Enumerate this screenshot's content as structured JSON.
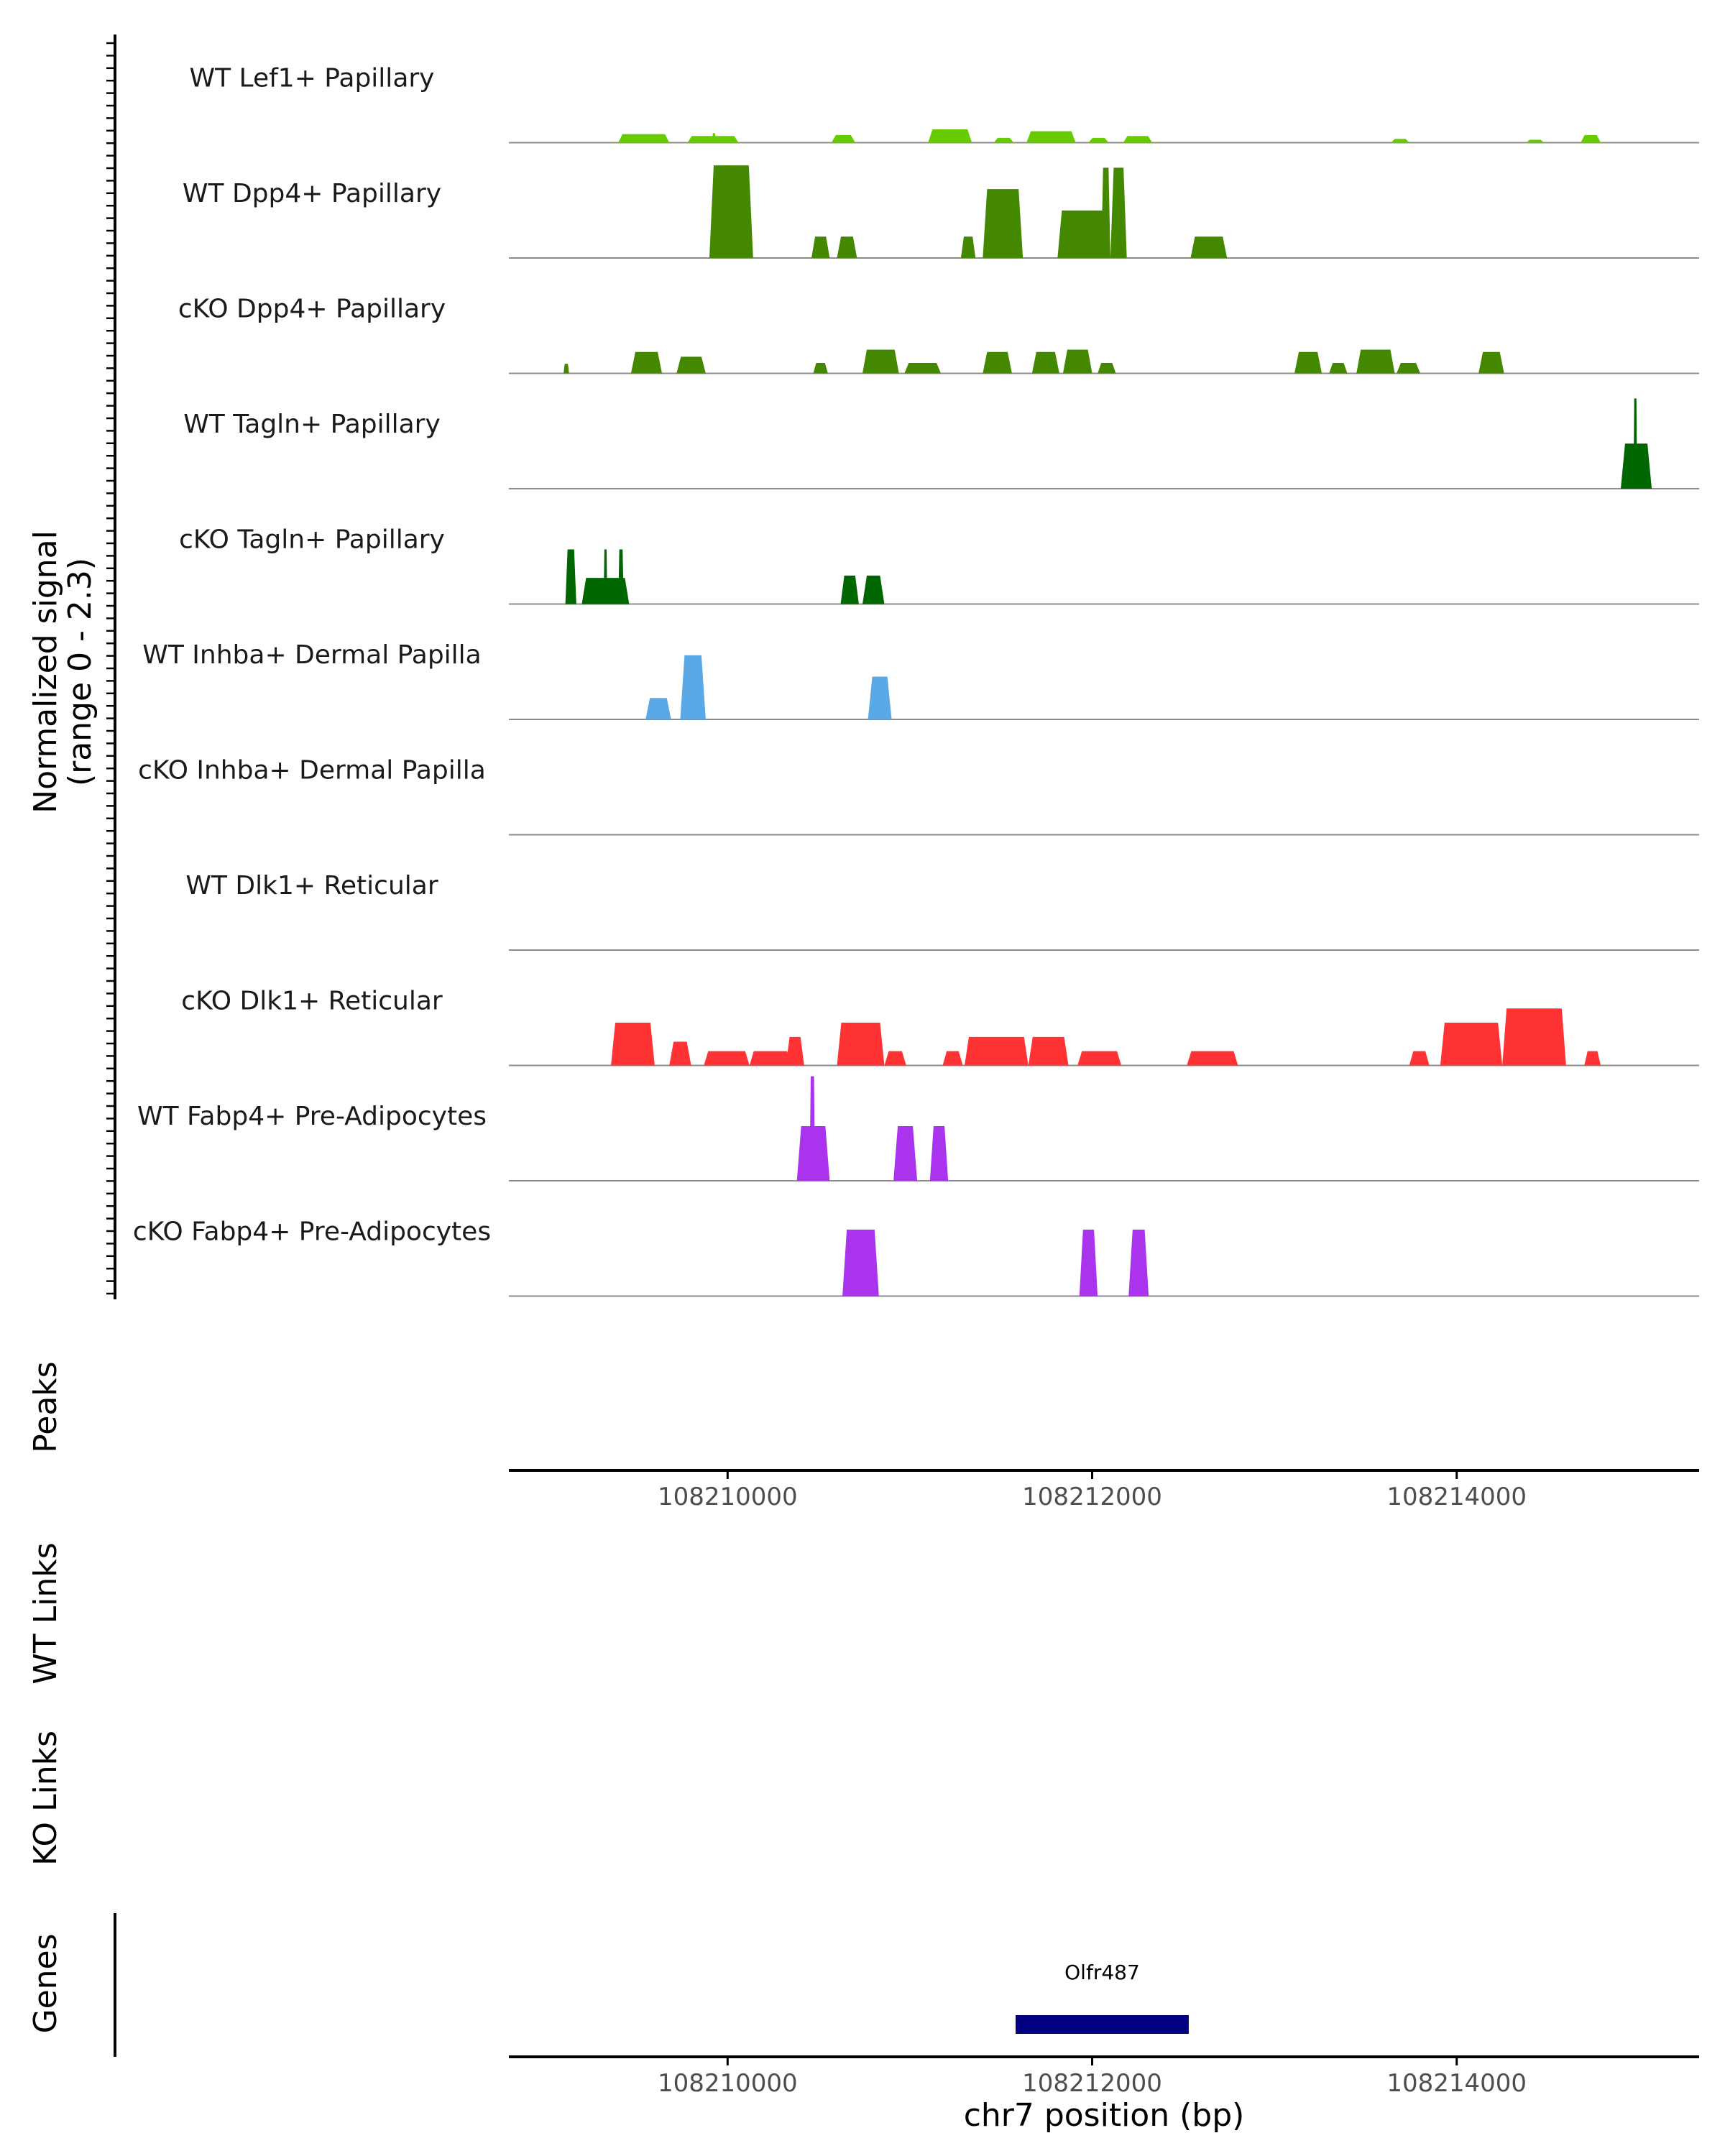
{
  "chart_data": {
    "type": "area",
    "title": "",
    "region": {
      "chromosome": "chr7",
      "start": 108208800,
      "end": 108215330
    },
    "signal_axis": {
      "label_line1": "Normalized signal",
      "label_line2": "(range 0 - 2.3)",
      "range": [
        0,
        2.3
      ]
    },
    "x_axis": {
      "xlabel": "chr7 position (bp)",
      "ticks": [
        {
          "value": 108210000,
          "label": "108210000"
        },
        {
          "value": 108212000,
          "label": "108212000"
        },
        {
          "value": 108214000,
          "label": "108214000"
        }
      ]
    },
    "panel_labels": {
      "peaks": "Peaks",
      "wt_links": "WT Links",
      "ko_links": "KO Links",
      "genes": "Genes"
    },
    "tracks": [
      {
        "name": "WT Lef1+ Papillary",
        "color": "#66cc00",
        "peaks": [
          [
            108209400,
            108209680,
            0.18
          ],
          [
            108209780,
            108210060,
            0.14
          ],
          [
            108209915,
            108209935,
            0.2
          ],
          [
            108209950,
            108209990,
            0.12
          ],
          [
            108210570,
            108210700,
            0.16
          ],
          [
            108211100,
            108211340,
            0.28
          ],
          [
            108211460,
            108211570,
            0.1
          ],
          [
            108211640,
            108211910,
            0.24
          ],
          [
            108211980,
            108212090,
            0.1
          ],
          [
            108212170,
            108212330,
            0.14
          ],
          [
            108213640,
            108213740,
            0.08
          ],
          [
            108214380,
            108214480,
            0.06
          ],
          [
            108214680,
            108214790,
            0.16
          ]
        ]
      },
      {
        "name": "WT Dpp4+ Papillary",
        "color": "#448800",
        "peaks": [
          [
            108209900,
            108210140,
            1.95
          ],
          [
            108209980,
            108210010,
            1.95
          ],
          [
            108210460,
            108210560,
            0.45
          ],
          [
            108210600,
            108210710,
            0.45
          ],
          [
            108211280,
            108211360,
            0.45
          ],
          [
            108211400,
            108211620,
            1.45
          ],
          [
            108211470,
            108211500,
            1.0
          ],
          [
            108211810,
            108212100,
            1.0
          ],
          [
            108212050,
            108212100,
            1.9
          ],
          [
            108212100,
            108212190,
            1.9
          ],
          [
            108212540,
            108212740,
            0.45
          ]
        ]
      },
      {
        "name": "cKO Dpp4+ Papillary",
        "color": "#448800",
        "peaks": [
          [
            108209100,
            108209130,
            0.2
          ],
          [
            108209470,
            108209640,
            0.45
          ],
          [
            108209720,
            108209880,
            0.35
          ],
          [
            108210470,
            108210550,
            0.22
          ],
          [
            108210740,
            108210940,
            0.5
          ],
          [
            108210970,
            108211170,
            0.22
          ],
          [
            108211400,
            108211560,
            0.45
          ],
          [
            108211670,
            108211820,
            0.45
          ],
          [
            108211840,
            108212000,
            0.5
          ],
          [
            108212030,
            108212130,
            0.22
          ],
          [
            108213110,
            108213260,
            0.45
          ],
          [
            108213300,
            108213400,
            0.22
          ],
          [
            108213450,
            108213660,
            0.5
          ],
          [
            108213670,
            108213800,
            0.22
          ],
          [
            108214120,
            108214260,
            0.45
          ]
        ]
      },
      {
        "name": "WT Tagln+ Papillary",
        "color": "#006600",
        "peaks": [
          [
            108214900,
            108215070,
            0.95
          ],
          [
            108214970,
            108214990,
            1.9
          ]
        ]
      },
      {
        "name": "cKO Tagln+ Papillary",
        "color": "#006600",
        "peaks": [
          [
            108209110,
            108209170,
            1.15
          ],
          [
            108209200,
            108209460,
            0.55
          ],
          [
            108209320,
            108209340,
            1.15
          ],
          [
            108209400,
            108209430,
            1.15
          ],
          [
            108210620,
            108210720,
            0.6
          ],
          [
            108210740,
            108210860,
            0.6
          ]
        ]
      },
      {
        "name": "WT Inhba+ Dermal Papilla",
        "color": "#5aa9e6",
        "peaks": [
          [
            108209550,
            108209690,
            0.45
          ],
          [
            108209740,
            108209880,
            1.35
          ],
          [
            108210770,
            108210900,
            0.9
          ]
        ]
      },
      {
        "name": "cKO Inhba+ Dermal Papilla",
        "color": "#5aa9e6",
        "peaks": []
      },
      {
        "name": "WT Dlk1+ Reticular",
        "color": "#ff3333",
        "peaks": []
      },
      {
        "name": "cKO Dlk1+ Reticular",
        "color": "#ff3333",
        "peaks": [
          [
            108209360,
            108209600,
            0.9
          ],
          [
            108209680,
            108209800,
            0.5
          ],
          [
            108209870,
            108210120,
            0.3
          ],
          [
            108210120,
            108210350,
            0.3
          ],
          [
            108210320,
            108210420,
            0.6
          ],
          [
            108210600,
            108210860,
            0.9
          ],
          [
            108210860,
            108210980,
            0.3
          ],
          [
            108211180,
            108211290,
            0.3
          ],
          [
            108211300,
            108211650,
            0.6
          ],
          [
            108211650,
            108211870,
            0.6
          ],
          [
            108211920,
            108212160,
            0.3
          ],
          [
            108212520,
            108212800,
            0.3
          ],
          [
            108213740,
            108213850,
            0.3
          ],
          [
            108213910,
            108214250,
            0.9
          ],
          [
            108214250,
            108214600,
            1.2
          ],
          [
            108214700,
            108214790,
            0.3
          ]
        ]
      },
      {
        "name": "WT Fabp4+ Pre-Adipocytes",
        "color": "#aa33ee",
        "peaks": [
          [
            108210380,
            108210560,
            1.15
          ],
          [
            108210450,
            108210480,
            2.2
          ],
          [
            108210910,
            108211040,
            1.15
          ],
          [
            108211110,
            108211210,
            1.15
          ]
        ]
      },
      {
        "name": "cKO Fabp4+ Pre-Adipocytes",
        "color": "#aa33ee",
        "peaks": [
          [
            108210630,
            108210830,
            1.4
          ],
          [
            108211930,
            108212030,
            1.4
          ],
          [
            108212200,
            108212310,
            1.4
          ]
        ]
      }
    ],
    "genes": [
      {
        "name": "Olfr487",
        "start": 108211580,
        "end": 108212530,
        "color": "#000080"
      }
    ]
  }
}
